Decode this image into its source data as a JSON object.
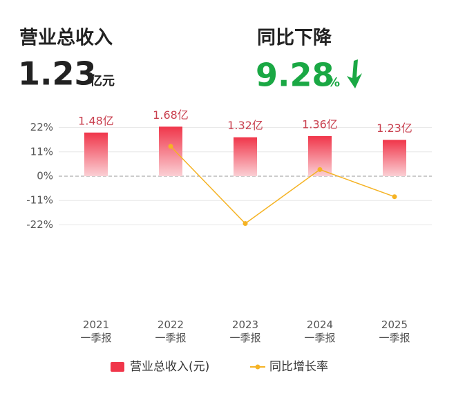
{
  "header": {
    "left_title": "营业总收入",
    "left_value": "1.23",
    "left_unit": "亿元",
    "right_title": "同比下降",
    "right_value": "9.28",
    "right_unit": "%"
  },
  "chart_data": {
    "type": "bar",
    "categories": [
      "2021\n一季报",
      "2022\n一季报",
      "2023\n一季报",
      "2024\n一季报",
      "2025\n一季报"
    ],
    "ylim": [
      -24,
      24
    ],
    "yticks": [
      {
        "value": 22,
        "label": "22%"
      },
      {
        "value": 11,
        "label": "11%"
      },
      {
        "value": 0,
        "label": "0%"
      },
      {
        "value": -11,
        "label": "-11%"
      },
      {
        "value": -22,
        "label": "-22%"
      }
    ],
    "y2lim": [
      -1.8,
      1.8
    ],
    "grid": true,
    "series": [
      {
        "name": "营业总收入(元)",
        "type": "bar",
        "axis": "y2",
        "color": "#f0364a",
        "values": [
          1.48,
          1.68,
          1.32,
          1.36,
          1.23
        ],
        "value_labels": [
          "1.48亿",
          "1.68亿",
          "1.32亿",
          "1.36亿",
          "1.23亿"
        ]
      },
      {
        "name": "同比增长率",
        "type": "line",
        "color": "#f5b324",
        "values": [
          null,
          13.5,
          -21.4,
          3.0,
          -9.28
        ]
      }
    ],
    "legend": "bottom"
  }
}
